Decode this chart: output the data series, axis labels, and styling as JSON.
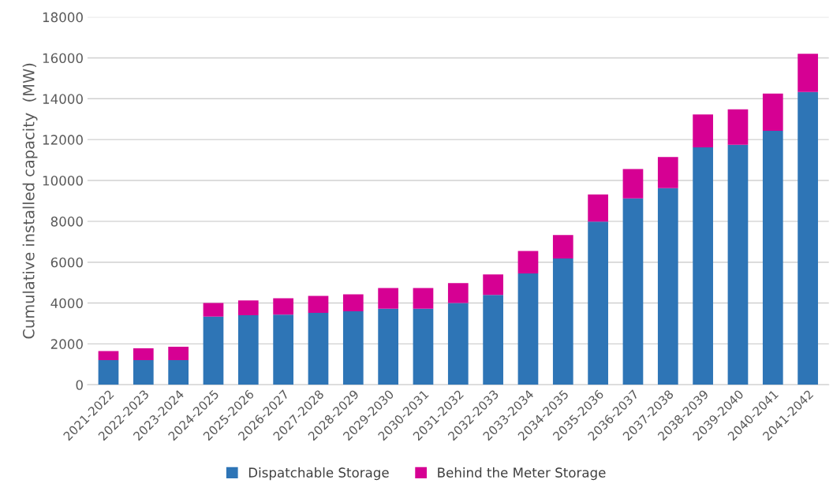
{
  "chart_data": {
    "type": "bar",
    "stacked": true,
    "ylabel": "Cumulative installed capacity  (MW)",
    "categories": [
      "2021-2022",
      "2022-2023",
      "2023-2024",
      "2024-2025",
      "2025-2026",
      "2026-2027",
      "2027-2028",
      "2028-2029",
      "2029-2030",
      "2030-2031",
      "2031-2032",
      "2032-2033",
      "2033-2034",
      "2034-2035",
      "2035-2036",
      "2036-2037",
      "2037-2038",
      "2038-2039",
      "2039-2040",
      "2040-2041",
      "2041-2042"
    ],
    "series": [
      {
        "name": "Dispatchable Storage",
        "color": "#2e75b6",
        "values": [
          1200,
          1200,
          1200,
          3340,
          3400,
          3430,
          3520,
          3600,
          3720,
          3720,
          4000,
          4400,
          5450,
          6180,
          7980,
          9120,
          9620,
          11620,
          11750,
          12430,
          14330
        ]
      },
      {
        "name": "Behind the Meter Storage",
        "color": "#d60093",
        "values": [
          450,
          580,
          660,
          660,
          730,
          800,
          830,
          830,
          1010,
          1010,
          980,
          1000,
          1100,
          1150,
          1340,
          1440,
          1530,
          1610,
          1730,
          1820,
          1870
        ]
      }
    ],
    "ylim": [
      0,
      18000
    ],
    "yticks": [
      0,
      2000,
      4000,
      6000,
      8000,
      10000,
      12000,
      14000,
      16000,
      18000
    ],
    "grid": "y",
    "legend": "bottom"
  }
}
